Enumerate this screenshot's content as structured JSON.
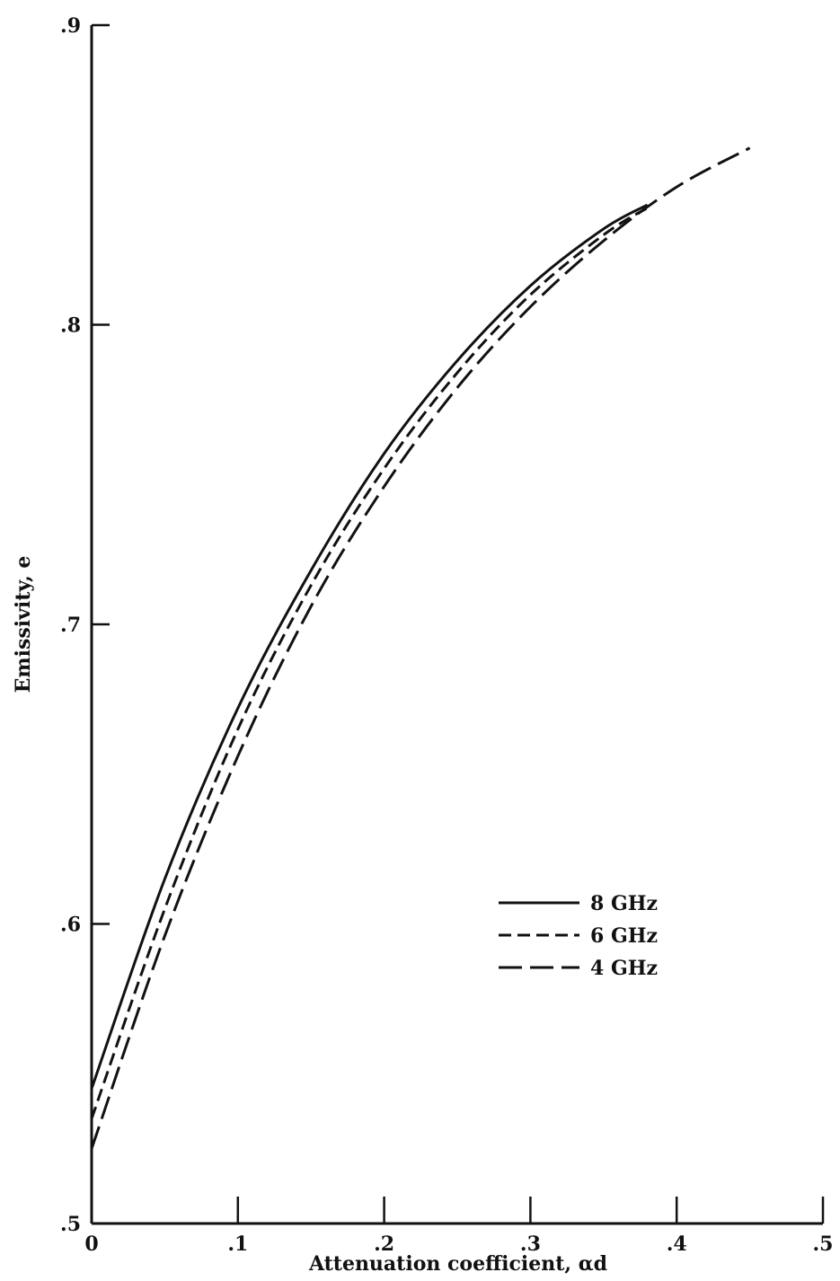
{
  "chart_data": {
    "type": "line",
    "xlabel": "Attenuation coefficient, αd",
    "ylabel": "Emissivity, e",
    "xlim": [
      0,
      0.5
    ],
    "ylim": [
      0.5,
      0.9
    ],
    "xticks": [
      0,
      0.1,
      0.2,
      0.3,
      0.4,
      0.5
    ],
    "xtick_labels": [
      "0",
      ".1",
      ".2",
      ".3",
      ".4",
      ".5"
    ],
    "yticks": [
      0.5,
      0.6,
      0.7,
      0.8,
      0.9
    ],
    "ytick_labels": [
      ".5",
      ".6",
      ".7",
      ".8",
      ".9"
    ],
    "grid": false,
    "legend_position": "lower-right",
    "series": [
      {
        "name": "8 GHz",
        "style": "solid",
        "x": [
          0,
          0.05,
          0.1,
          0.15,
          0.2,
          0.25,
          0.3,
          0.35,
          0.38
        ],
        "y": [
          0.545,
          0.615,
          0.672,
          0.718,
          0.757,
          0.788,
          0.813,
          0.832,
          0.84
        ]
      },
      {
        "name": "6 GHz",
        "style": "dashed",
        "x": [
          0,
          0.05,
          0.1,
          0.15,
          0.2,
          0.25,
          0.3,
          0.35,
          0.38
        ],
        "y": [
          0.535,
          0.605,
          0.665,
          0.713,
          0.752,
          0.784,
          0.81,
          0.83,
          0.839
        ]
      },
      {
        "name": "4 GHz",
        "style": "long-dash",
        "x": [
          0,
          0.05,
          0.1,
          0.15,
          0.2,
          0.25,
          0.3,
          0.35,
          0.4,
          0.45
        ],
        "y": [
          0.525,
          0.596,
          0.656,
          0.706,
          0.746,
          0.779,
          0.806,
          0.828,
          0.846,
          0.859
        ]
      }
    ]
  }
}
